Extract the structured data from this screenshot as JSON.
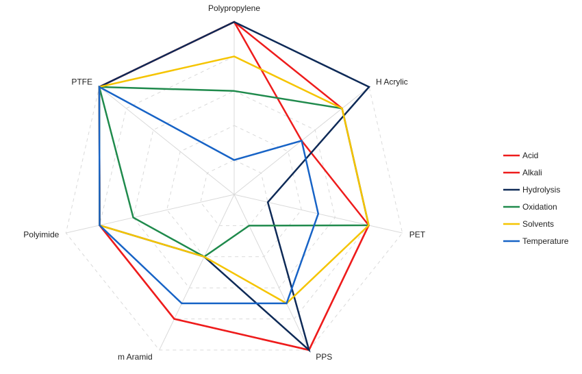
{
  "chart_data": {
    "type": "radar",
    "axes": [
      "Polypropylene",
      "H Acrylic",
      "PET",
      "PPS",
      "m Aramid",
      "Polyimide",
      "PTFE"
    ],
    "rmax": 5,
    "grid": true,
    "legend_position": "right",
    "series": [
      {
        "name": "Acid",
        "color": "#ee1c1c",
        "values": [
          5,
          2.5,
          4,
          5,
          4,
          4,
          5
        ]
      },
      {
        "name": "Alkali",
        "color": "#ee1c1c",
        "values": [
          5,
          4,
          4,
          5,
          4,
          4,
          5
        ]
      },
      {
        "name": "Hydrolysis",
        "color": "#0e2a57",
        "values": [
          5,
          5,
          1,
          5,
          2,
          4,
          5
        ]
      },
      {
        "name": "Oxidation",
        "color": "#1f8a4c",
        "values": [
          3,
          4,
          4,
          1,
          2,
          3,
          5
        ]
      },
      {
        "name": "Solvents",
        "color": "#f5c400",
        "values": [
          4,
          4,
          4,
          3.5,
          2,
          4,
          5
        ]
      },
      {
        "name": "Temperature",
        "color": "#1763c6",
        "values": [
          1,
          2.5,
          2.5,
          3.5,
          3.5,
          4,
          5
        ]
      }
    ]
  }
}
